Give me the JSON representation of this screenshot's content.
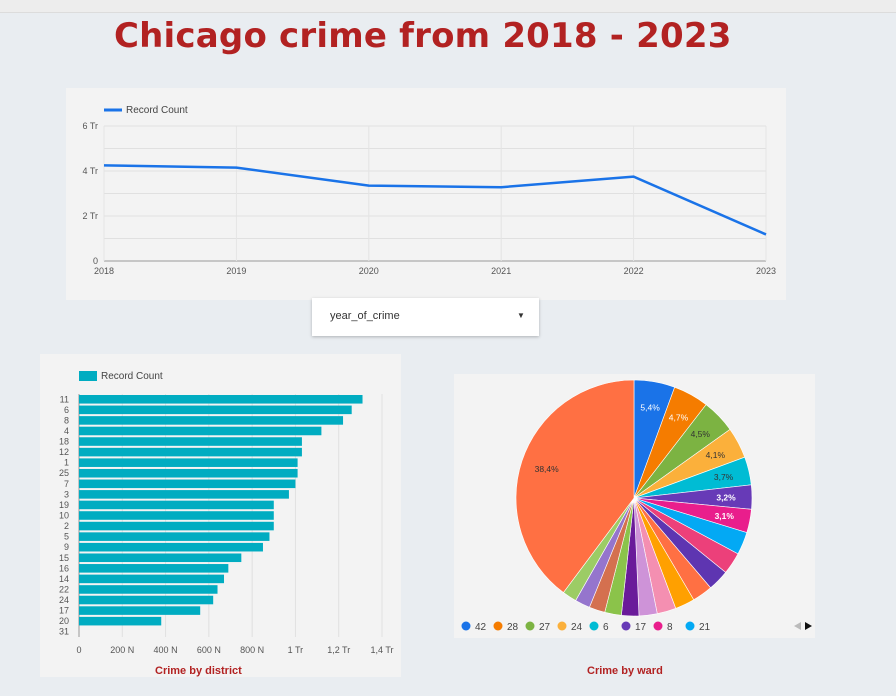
{
  "page": {
    "title": "Chicago crime from 2018 - 2023"
  },
  "filter": {
    "label": "year_of_crime"
  },
  "chart_data": [
    {
      "type": "line",
      "legend": "Record Count",
      "legend_position": "top-left",
      "x": [
        "2018",
        "2019",
        "2020",
        "2021",
        "2022",
        "2023"
      ],
      "series": [
        {
          "name": "Record Count",
          "values": [
            4.25,
            4.15,
            3.35,
            3.28,
            3.75,
            1.18
          ]
        }
      ],
      "ylim": [
        0,
        6
      ],
      "yticks": [
        "0",
        "2 Tr",
        "4 Tr",
        "6 Tr"
      ],
      "color": "#1a73e8",
      "grid": true
    },
    {
      "type": "bar",
      "orientation": "horizontal",
      "legend": "Record Count",
      "legend_position": "top-left",
      "caption": "Crime by district",
      "categories": [
        "11",
        "6",
        "8",
        "4",
        "18",
        "12",
        "1",
        "25",
        "7",
        "3",
        "19",
        "10",
        "2",
        "5",
        "9",
        "15",
        "16",
        "14",
        "22",
        "24",
        "17",
        "20",
        "31"
      ],
      "values": [
        1.31,
        1.26,
        1.22,
        1.12,
        1.03,
        1.03,
        1.01,
        1.01,
        1.0,
        0.97,
        0.9,
        0.9,
        0.9,
        0.88,
        0.85,
        0.75,
        0.69,
        0.67,
        0.64,
        0.62,
        0.56,
        0.38,
        0.0
      ],
      "xlim": [
        0,
        1.4
      ],
      "xticks": [
        "0",
        "200 N",
        "400 N",
        "600 N",
        "800 N",
        "1 Tr",
        "1,2 Tr",
        "1,4 Tr"
      ],
      "color": "#00acc1",
      "grid": true
    },
    {
      "type": "pie",
      "caption": "Crime by ward",
      "slices": [
        {
          "label": "42",
          "value": 5.4,
          "text": "5,4%",
          "color": "#1a73e8"
        },
        {
          "label": "28",
          "value": 4.7,
          "text": "4,7%",
          "color": "#f57c00"
        },
        {
          "label": "27",
          "value": 4.5,
          "text": "4,5%",
          "color": "#7cb342"
        },
        {
          "label": "24",
          "value": 4.1,
          "text": "4,1%",
          "color": "#fbb03b"
        },
        {
          "label": "6",
          "value": 3.7,
          "text": "3,7%",
          "color": "#00bcd4"
        },
        {
          "label": "17",
          "value": 3.2,
          "text": "3,2%",
          "color": "#673ab7"
        },
        {
          "label": "8",
          "value": 3.1,
          "text": "3,1%",
          "color": "#e91e8c"
        },
        {
          "label": "21",
          "value": 3.0,
          "text": "",
          "color": "#03a9f4"
        },
        {
          "label": "",
          "value": 2.9,
          "text": "",
          "color": "#ec407a"
        },
        {
          "label": "",
          "value": 2.8,
          "text": "",
          "color": "#5e35b1"
        },
        {
          "label": "",
          "value": 2.7,
          "text": "",
          "color": "#ff7043"
        },
        {
          "label": "",
          "value": 2.6,
          "text": "",
          "color": "#ffa000"
        },
        {
          "label": "",
          "value": 2.5,
          "text": "",
          "color": "#f48fb1"
        },
        {
          "label": "",
          "value": 2.4,
          "text": "",
          "color": "#ce93d8"
        },
        {
          "label": "",
          "value": 2.3,
          "text": "",
          "color": "#6a1b9a"
        },
        {
          "label": "",
          "value": 2.2,
          "text": "",
          "color": "#8bc34a"
        },
        {
          "label": "",
          "value": 2.1,
          "text": "",
          "color": "#d4704f"
        },
        {
          "label": "",
          "value": 2.0,
          "text": "",
          "color": "#9575cd"
        },
        {
          "label": "",
          "value": 1.9,
          "text": "",
          "color": "#9ccc65"
        },
        {
          "label": "",
          "value": 38.4,
          "text": "38,4%",
          "color": "#ff7043"
        }
      ],
      "legend_items": [
        "42",
        "28",
        "27",
        "24",
        "6",
        "17",
        "8",
        "21"
      ]
    }
  ]
}
